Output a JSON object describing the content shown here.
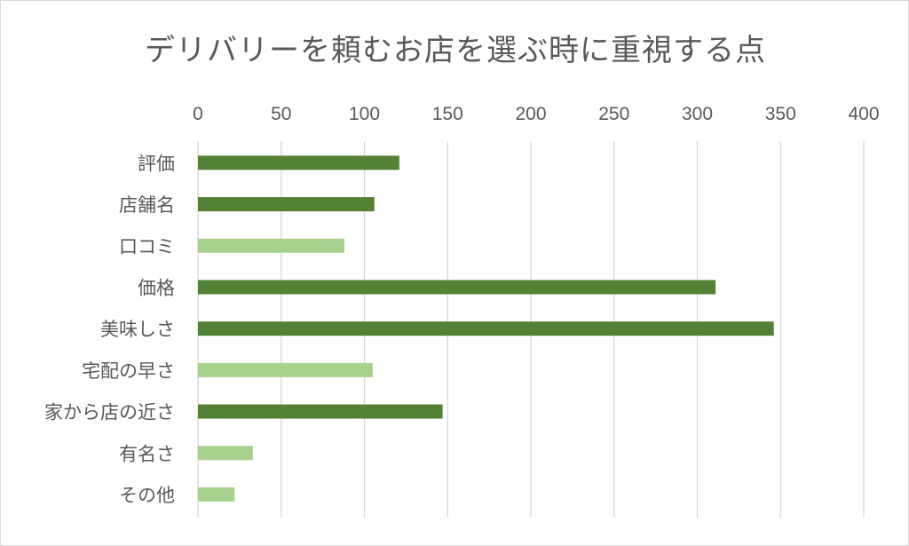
{
  "chart_data": {
    "type": "bar",
    "orientation": "horizontal",
    "title": "デリバリーを頼むお店を選ぶ時に重視する点",
    "xlabel": "",
    "ylabel": "",
    "xlim": [
      0,
      400
    ],
    "ticks": [
      0,
      50,
      100,
      150,
      200,
      250,
      300,
      350,
      400
    ],
    "axis_position": "top",
    "grid": true,
    "categories": [
      "評価",
      "店舗名",
      "口コミ",
      "価格",
      "美味しさ",
      "宅配の早さ",
      "家から店の近さ",
      "有名さ",
      "その他"
    ],
    "values": [
      121,
      106,
      88,
      311,
      346,
      105,
      147,
      33,
      22
    ],
    "bar_colors": [
      "#548235",
      "#548235",
      "#a9d18e",
      "#548235",
      "#548235",
      "#a9d18e",
      "#548235",
      "#a9d18e",
      "#a9d18e"
    ]
  }
}
